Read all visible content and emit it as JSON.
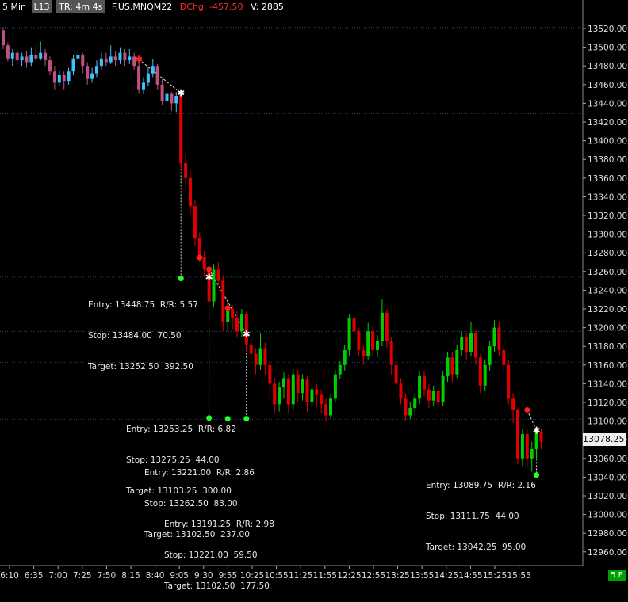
{
  "header": {
    "timeframe": "5 Min",
    "level_label": "L13",
    "time_remaining": "TR: 4m 4s",
    "symbol": "F.US.MNQM22",
    "dchg": "DChg: -457.50",
    "volume": "V: 2885"
  },
  "price_axis": {
    "ticks": [
      "13520.00",
      "13500.00",
      "13480.00",
      "13460.00",
      "13440.00",
      "13420.00",
      "13400.00",
      "13380.00",
      "13360.00",
      "13340.00",
      "13320.00",
      "13300.00",
      "13280.00",
      "13260.00",
      "13240.00",
      "13220.00",
      "13200.00",
      "13180.00",
      "13160.00",
      "13140.00",
      "13120.00",
      "13100.00",
      "13080.00",
      "13060.00",
      "13040.00",
      "13020.00",
      "13000.00",
      "12980.00",
      "12960.00"
    ],
    "last_price": "13078.25"
  },
  "time_axis": {
    "ticks": [
      "6:10",
      "6:35",
      "7:00",
      "7:25",
      "7:50",
      "8:15",
      "8:40",
      "9:05",
      "9:30",
      "9:55",
      "10:25",
      "10:55",
      "11:25",
      "11:55",
      "12:25",
      "12:55",
      "13:25",
      "13:55",
      "14:25",
      "14:55",
      "15:25",
      "15:55"
    ]
  },
  "badge": "5 E",
  "colors": {
    "up": "#00d000",
    "down": "#e00000",
    "grid": "#3050a0",
    "marker_red": "#ff2020",
    "marker_green": "#20ff20"
  },
  "annotations": [
    {
      "line1": "Entry: 13448.75  R/R: 5.57",
      "line2": "Stop: 13484.00  70.50",
      "line3": "Target: 13252.50  392.50"
    },
    {
      "line1": "Entry: 13253.25  R/R: 6.82",
      "line2": "Stop: 13275.25  44.00",
      "line3": "Target: 13103.25  300.00"
    },
    {
      "line1": "Entry: 13221.00  R/R: 2.86",
      "line2": "Stop: 13262.50  83.00",
      "line3": "Target: 13102.50  237.00"
    },
    {
      "line1": "Entry: 13191.25  R/R: 2.98",
      "line2": "Stop: 13221.00  59.50",
      "line3": "Target: 13102.50  177.50"
    },
    {
      "line1": "Entry: 13089.75  R/R: 2.16",
      "line2": "Stop: 13111.75  44.00",
      "line3": "Target: 13042.25  95.00"
    }
  ],
  "chart_data": {
    "type": "candlestick",
    "horizontal_levels": [
      13521,
      13451,
      13429,
      13254,
      13222,
      13196,
      13163,
      13102
    ],
    "candles": [
      [
        13518,
        13502,
        13521,
        13498
      ],
      [
        13502,
        13488,
        13505,
        13485
      ],
      [
        13488,
        13494,
        13498,
        13480
      ],
      [
        13494,
        13486,
        13497,
        13482
      ],
      [
        13486,
        13490,
        13494,
        13480
      ],
      [
        13490,
        13484,
        13496,
        13478
      ],
      [
        13484,
        13492,
        13500,
        13480
      ],
      [
        13492,
        13488,
        13502,
        13484
      ],
      [
        13488,
        13494,
        13506,
        13486
      ],
      [
        13494,
        13486,
        13498,
        13480
      ],
      [
        13486,
        13474,
        13490,
        13470
      ],
      [
        13474,
        13462,
        13480,
        13455
      ],
      [
        13462,
        13470,
        13476,
        13458
      ],
      [
        13470,
        13464,
        13474,
        13455
      ],
      [
        13464,
        13474,
        13478,
        13460
      ],
      [
        13474,
        13488,
        13492,
        13470
      ],
      [
        13488,
        13492,
        13496,
        13484
      ],
      [
        13492,
        13480,
        13494,
        13472
      ],
      [
        13480,
        13466,
        13484,
        13460
      ],
      [
        13466,
        13472,
        13478,
        13462
      ],
      [
        13472,
        13480,
        13486,
        13468
      ],
      [
        13480,
        13488,
        13494,
        13476
      ],
      [
        13488,
        13484,
        13494,
        13480
      ],
      [
        13484,
        13490,
        13502,
        13482
      ],
      [
        13490,
        13486,
        13496,
        13480
      ],
      [
        13486,
        13494,
        13500,
        13482
      ],
      [
        13494,
        13486,
        13498,
        13480
      ],
      [
        13486,
        13490,
        13498,
        13482
      ],
      [
        13490,
        13480,
        13494,
        13476
      ],
      [
        13480,
        13455,
        13484,
        13450
      ],
      [
        13455,
        13462,
        13468,
        13450
      ],
      [
        13462,
        13472,
        13478,
        13458
      ],
      [
        13472,
        13480,
        13487,
        13468
      ],
      [
        13480,
        13460,
        13482,
        13455
      ],
      [
        13460,
        13442,
        13466,
        13438
      ],
      [
        13442,
        13450,
        13455,
        13436
      ],
      [
        13450,
        13440,
        13452,
        13432
      ],
      [
        13440,
        13448,
        13452,
        13430
      ],
      [
        13449,
        13376,
        13451,
        13370
      ],
      [
        13376,
        13360,
        13386,
        13350
      ],
      [
        13360,
        13330,
        13368,
        13322
      ],
      [
        13330,
        13296,
        13336,
        13288
      ],
      [
        13296,
        13276,
        13302,
        13270
      ],
      [
        13276,
        13262,
        13282,
        13254
      ],
      [
        13262,
        13228,
        13268,
        13220
      ],
      [
        13228,
        13262,
        13268,
        13222
      ],
      [
        13262,
        13250,
        13270,
        13245
      ],
      [
        13250,
        13206,
        13256,
        13196
      ],
      [
        13206,
        13220,
        13228,
        13196
      ],
      [
        13220,
        13210,
        13224,
        13198
      ],
      [
        13210,
        13196,
        13218,
        13190
      ],
      [
        13196,
        13214,
        13220,
        13190
      ],
      [
        13214,
        13182,
        13218,
        13174
      ],
      [
        13182,
        13172,
        13190,
        13165
      ],
      [
        13172,
        13160,
        13178,
        13150
      ],
      [
        13160,
        13178,
        13194,
        13155
      ],
      [
        13178,
        13160,
        13184,
        13150
      ],
      [
        13160,
        13140,
        13164,
        13125
      ],
      [
        13140,
        13118,
        13146,
        13108
      ],
      [
        13118,
        13136,
        13142,
        13110
      ],
      [
        13136,
        13146,
        13152,
        13124
      ],
      [
        13146,
        13118,
        13150,
        13108
      ],
      [
        13118,
        13150,
        13156,
        13112
      ],
      [
        13150,
        13130,
        13155,
        13120
      ],
      [
        13130,
        13145,
        13150,
        13122
      ],
      [
        13145,
        13120,
        13148,
        13110
      ],
      [
        13120,
        13134,
        13140,
        13115
      ],
      [
        13134,
        13128,
        13140,
        13115
      ],
      [
        13128,
        13118,
        13134,
        13108
      ],
      [
        13118,
        13106,
        13124,
        13100
      ],
      [
        13106,
        13124,
        13128,
        13102
      ],
      [
        13124,
        13150,
        13155,
        13120
      ],
      [
        13150,
        13160,
        13164,
        13145
      ],
      [
        13160,
        13176,
        13182,
        13154
      ],
      [
        13176,
        13210,
        13214,
        13170
      ],
      [
        13210,
        13196,
        13220,
        13190
      ],
      [
        13196,
        13176,
        13200,
        13170
      ],
      [
        13176,
        13170,
        13182,
        13160
      ],
      [
        13170,
        13196,
        13205,
        13166
      ],
      [
        13196,
        13176,
        13202,
        13170
      ],
      [
        13176,
        13186,
        13192,
        13168
      ],
      [
        13186,
        13216,
        13230,
        13180
      ],
      [
        13216,
        13186,
        13220,
        13178
      ],
      [
        13186,
        13160,
        13190,
        13150
      ],
      [
        13160,
        13140,
        13166,
        13132
      ],
      [
        13140,
        13124,
        13146,
        13118
      ],
      [
        13124,
        13106,
        13130,
        13100
      ],
      [
        13106,
        13114,
        13120,
        13102
      ],
      [
        13114,
        13124,
        13130,
        13108
      ],
      [
        13124,
        13148,
        13154,
        13118
      ],
      [
        13148,
        13134,
        13154,
        13126
      ],
      [
        13134,
        13122,
        13140,
        13114
      ],
      [
        13122,
        13132,
        13138,
        13116
      ],
      [
        13132,
        13120,
        13136,
        13112
      ],
      [
        13120,
        13148,
        13154,
        13116
      ],
      [
        13148,
        13168,
        13174,
        13142
      ],
      [
        13168,
        13150,
        13174,
        13142
      ],
      [
        13150,
        13176,
        13182,
        13146
      ],
      [
        13176,
        13190,
        13196,
        13170
      ],
      [
        13190,
        13174,
        13194,
        13166
      ],
      [
        13174,
        13194,
        13206,
        13170
      ],
      [
        13194,
        13168,
        13198,
        13160
      ],
      [
        13168,
        13138,
        13172,
        13130
      ],
      [
        13138,
        13160,
        13166,
        13132
      ],
      [
        13160,
        13180,
        13186,
        13154
      ],
      [
        13180,
        13200,
        13208,
        13174
      ],
      [
        13200,
        13176,
        13206,
        13170
      ],
      [
        13176,
        13160,
        13182,
        13152
      ],
      [
        13160,
        13124,
        13166,
        13118
      ],
      [
        13124,
        13112,
        13130,
        13098
      ],
      [
        13112,
        13060,
        13114,
        13054
      ],
      [
        13060,
        13086,
        13092,
        13052
      ],
      [
        13086,
        13060,
        13092,
        13050
      ],
      [
        13060,
        13070,
        13078,
        13046
      ],
      [
        13070,
        13088,
        13092,
        13058
      ],
      [
        13088,
        13078,
        13092,
        13070
      ]
    ],
    "markers": [
      {
        "candle": 29,
        "price": 13487,
        "color": "red",
        "shape": "star"
      },
      {
        "candle": 38,
        "price": 13451,
        "color": "white",
        "shape": "star"
      },
      {
        "candle": 38,
        "price": 13252.5,
        "color": "green",
        "shape": "dot"
      },
      {
        "candle": 42,
        "price": 13275,
        "color": "red",
        "shape": "dot"
      },
      {
        "candle": 44,
        "price": 13262.5,
        "color": "red",
        "shape": "dot"
      },
      {
        "candle": 44,
        "price": 13254,
        "color": "white",
        "shape": "star"
      },
      {
        "candle": 44,
        "price": 13103.25,
        "color": "green",
        "shape": "dot"
      },
      {
        "candle": 48,
        "price": 13221,
        "color": "red",
        "shape": "dot"
      },
      {
        "candle": 48,
        "price": 13102.5,
        "color": "green",
        "shape": "dot"
      },
      {
        "candle": 52,
        "price": 13193,
        "color": "white",
        "shape": "star"
      },
      {
        "candle": 52,
        "price": 13102.5,
        "color": "green",
        "shape": "dot"
      },
      {
        "candle": 112,
        "price": 13112,
        "color": "red",
        "shape": "dot"
      },
      {
        "candle": 114,
        "price": 13090,
        "color": "white",
        "shape": "star"
      },
      {
        "candle": 114,
        "price": 13042.25,
        "color": "green",
        "shape": "dot"
      }
    ]
  }
}
